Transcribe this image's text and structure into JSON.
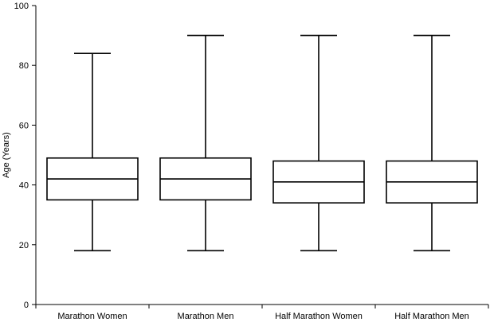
{
  "chart_data": {
    "type": "boxplot",
    "title": "",
    "xlabel": "",
    "ylabel": "Age (Years)",
    "ylim": [
      0,
      100
    ],
    "yticks": [
      0,
      20,
      40,
      60,
      80,
      100
    ],
    "grid": false,
    "categories": [
      "Marathon Women",
      "Marathon Men",
      "Half Marathon Women",
      "Half Marathon Men"
    ],
    "boxes": [
      {
        "category": "Marathon Women",
        "min": 18,
        "q1": 35,
        "median": 42,
        "q3": 49,
        "max": 84
      },
      {
        "category": "Marathon Men",
        "min": 18,
        "q1": 35,
        "median": 42,
        "q3": 49,
        "max": 90
      },
      {
        "category": "Half Marathon Women",
        "min": 18,
        "q1": 34,
        "median": 41,
        "q3": 48,
        "max": 90
      },
      {
        "category": "Half Marathon Men",
        "min": 18,
        "q1": 34,
        "median": 41,
        "q3": 48,
        "max": 90
      }
    ]
  }
}
